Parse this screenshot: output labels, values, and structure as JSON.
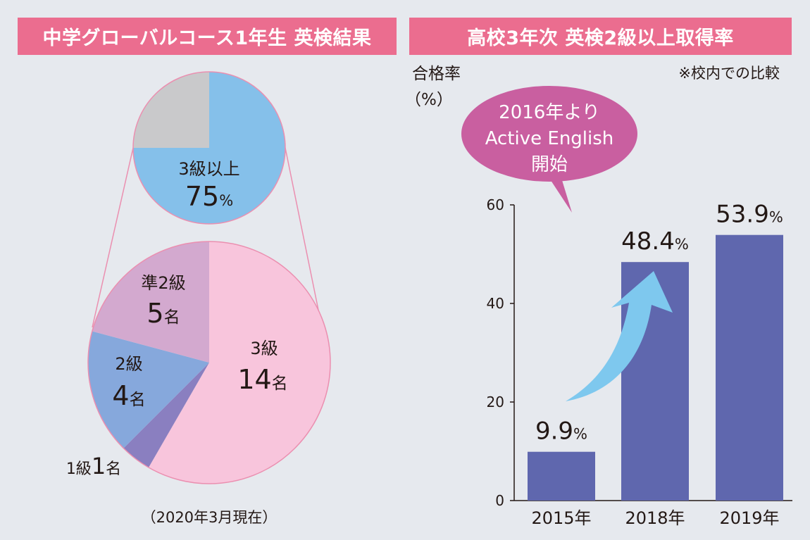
{
  "left_panel": {
    "title": "中学グローバルコース1年生 英検結果",
    "footnote": "（2020年3月現在）"
  },
  "right_panel": {
    "title": "高校3年次 英検2級以上取得率",
    "note": "※校内での比較",
    "callout_lines": [
      "2016年より",
      "Active English",
      "開始"
    ]
  },
  "chart_data": [
    {
      "type": "pie",
      "slices": [
        {
          "label": "3級以上",
          "value": 75,
          "unit": "%",
          "color": "#85c0ea"
        },
        {
          "label": "",
          "value": 25,
          "unit": "%",
          "color": "#c9c9cb"
        }
      ]
    },
    {
      "type": "pie",
      "unit": "名",
      "slices": [
        {
          "label": "3級",
          "value": 14,
          "color": "#f8c5dc"
        },
        {
          "label": "1級",
          "value": 1,
          "color": "#8a7fc0"
        },
        {
          "label": "2級",
          "value": 4,
          "color": "#86a8dc"
        },
        {
          "label": "準2級",
          "value": 5,
          "color": "#d3a9cf"
        }
      ]
    },
    {
      "type": "bar",
      "ylabel_lines": [
        "合格率",
        "（%）"
      ],
      "ylim": [
        0,
        60
      ],
      "yticks": [
        0,
        20,
        40,
        60
      ],
      "categories": [
        "2015年",
        "2018年",
        "2019年"
      ],
      "values": [
        9.9,
        48.4,
        53.9
      ],
      "value_unit": "%",
      "bar_color": "#5f67ae"
    }
  ]
}
